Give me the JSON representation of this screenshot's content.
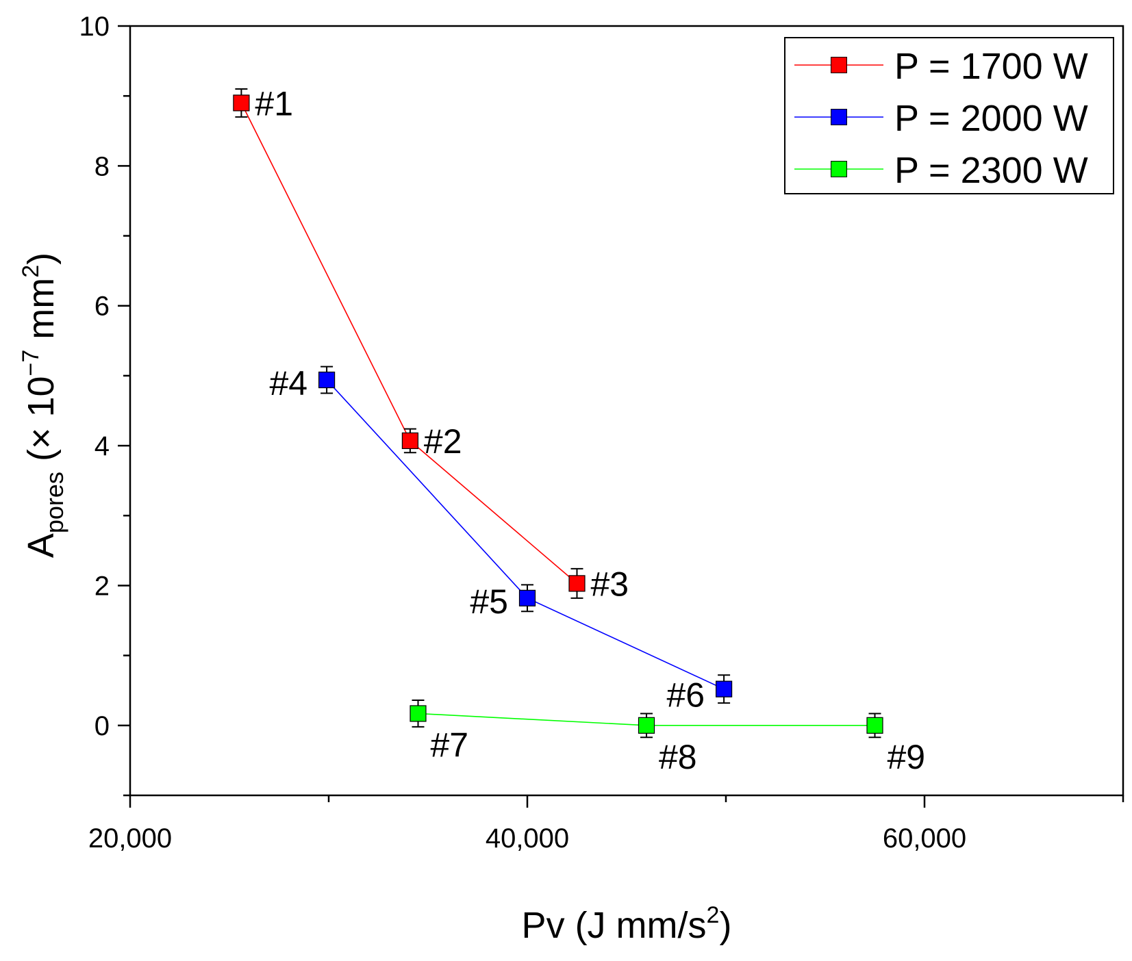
{
  "chart_data": {
    "type": "scatter",
    "title": "",
    "xlabel": {
      "main": "Pv (J mm/s",
      "sup": "2",
      "tail": ")"
    },
    "ylabel": {
      "main": "A",
      "sub": "pores",
      "mid": " (× 10",
      "sup1": "−7",
      "mid2": " mm",
      "sup2": "2",
      "tail": ")"
    },
    "xlim": [
      20000,
      70000
    ],
    "ylim": [
      -1,
      10
    ],
    "xticks": [
      {
        "value": 20000,
        "label": "20,000"
      },
      {
        "value": 40000,
        "label": "40,000"
      },
      {
        "value": 60000,
        "label": "60,000"
      }
    ],
    "xminor": [
      30000,
      50000,
      70000
    ],
    "yticks": [
      {
        "value": 0,
        "label": "0"
      },
      {
        "value": 2,
        "label": "2"
      },
      {
        "value": 4,
        "label": "4"
      },
      {
        "value": 6,
        "label": "6"
      },
      {
        "value": 8,
        "label": "8"
      },
      {
        "value": 10,
        "label": "10"
      }
    ],
    "yminor": [
      -1,
      1,
      3,
      5,
      7,
      9
    ],
    "legend_position": "top-right",
    "series": [
      {
        "name": "P = 1700 W",
        "color": "#ff0000",
        "points": [
          {
            "x": 25600,
            "y": 8.9,
            "err": 0.2,
            "label": "#1",
            "label_side": "right"
          },
          {
            "x": 34100,
            "y": 4.07,
            "err": 0.17,
            "label": "#2",
            "label_side": "right"
          },
          {
            "x": 42500,
            "y": 2.03,
            "err": 0.21,
            "label": "#3",
            "label_side": "right"
          }
        ]
      },
      {
        "name": "P = 2000 W",
        "color": "#0000ff",
        "points": [
          {
            "x": 29900,
            "y": 4.94,
            "err": 0.19,
            "label": "#4",
            "label_side": "left"
          },
          {
            "x": 40000,
            "y": 1.82,
            "err": 0.19,
            "label": "#5",
            "label_side": "left"
          },
          {
            "x": 49900,
            "y": 0.52,
            "err": 0.2,
            "label": "#6",
            "label_side": "below-left"
          }
        ]
      },
      {
        "name": "P = 2300 W",
        "color": "#00ff00",
        "points": [
          {
            "x": 34500,
            "y": 0.17,
            "err": 0.19,
            "label": "#7",
            "label_side": "below-right"
          },
          {
            "x": 46000,
            "y": 0.0,
            "err": 0.17,
            "label": "#8",
            "label_side": "below-right"
          },
          {
            "x": 57500,
            "y": 0.0,
            "err": 0.17,
            "label": "#9",
            "label_side": "below-right"
          }
        ]
      }
    ]
  }
}
